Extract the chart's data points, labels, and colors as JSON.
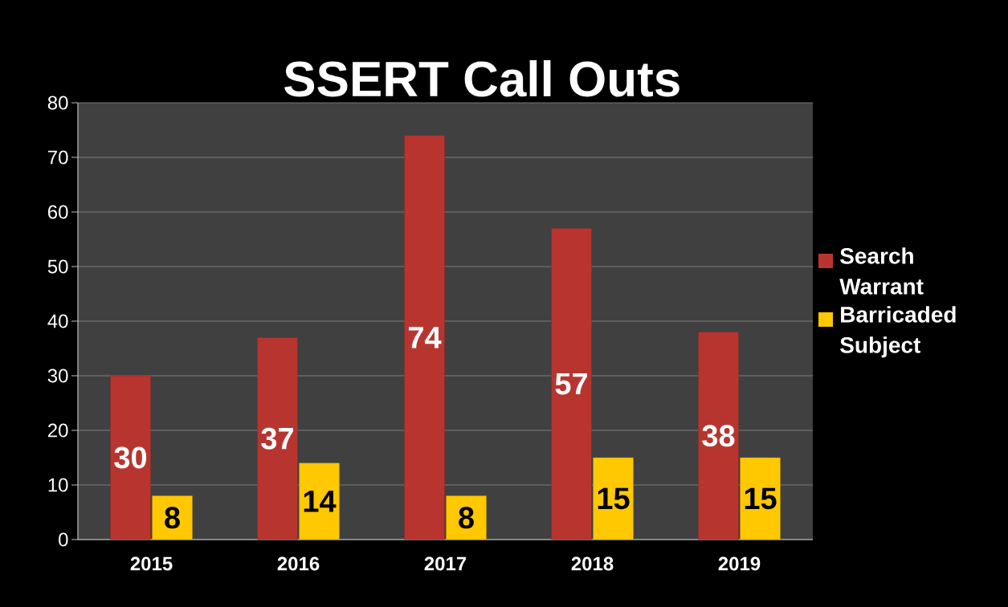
{
  "chart_data": {
    "type": "bar",
    "title": "SSERT Call Outs",
    "categories": [
      "2015",
      "2016",
      "2017",
      "2018",
      "2019"
    ],
    "series": [
      {
        "name": "Search Warrant",
        "color": "#b8352f",
        "values": [
          30,
          37,
          74,
          57,
          38
        ]
      },
      {
        "name": "Barricaded Subject",
        "color": "#ffc800",
        "values": [
          8,
          14,
          8,
          15,
          15
        ]
      }
    ],
    "ylim": [
      0,
      80
    ],
    "yticks": [
      0,
      10,
      20,
      30,
      40,
      50,
      60,
      70,
      80
    ],
    "grid": "y",
    "legend": "right",
    "data_labels": true
  }
}
